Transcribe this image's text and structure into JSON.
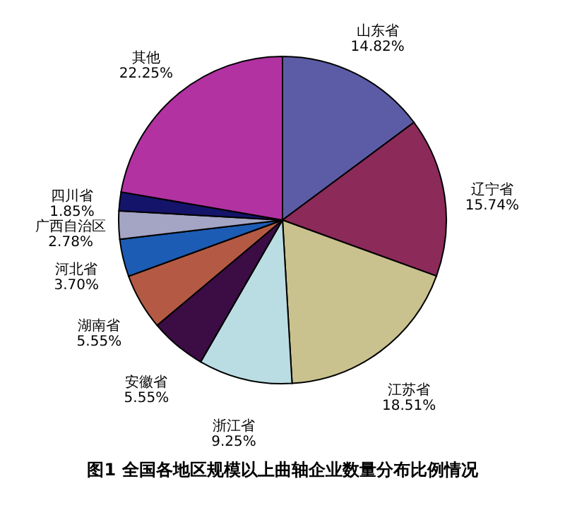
{
  "chart_data": {
    "type": "pie",
    "title": "图1 全国各地区规模以上曲轴企业数量分布比例情况",
    "categories": [
      "山东省",
      "辽宁省",
      "江苏省",
      "浙江省",
      "安徽省",
      "湖南省",
      "河北省",
      "广西自治区",
      "四川省",
      "其他"
    ],
    "values": [
      14.82,
      15.74,
      18.51,
      9.25,
      5.55,
      5.55,
      3.7,
      2.78,
      1.85,
      22.25
    ],
    "value_labels": [
      "14.82%",
      "15.74%",
      "18.51%",
      "9.25%",
      "5.55%",
      "5.55%",
      "3.70%",
      "2.78%",
      "1.85%",
      "22.25%"
    ],
    "colors": [
      "#5c5ca6",
      "#8c2a5a",
      "#c9c28e",
      "#b9dde2",
      "#3c0c44",
      "#b45a44",
      "#1c5cb4",
      "#a4a4c4",
      "#14146a",
      "#b232a2"
    ]
  }
}
